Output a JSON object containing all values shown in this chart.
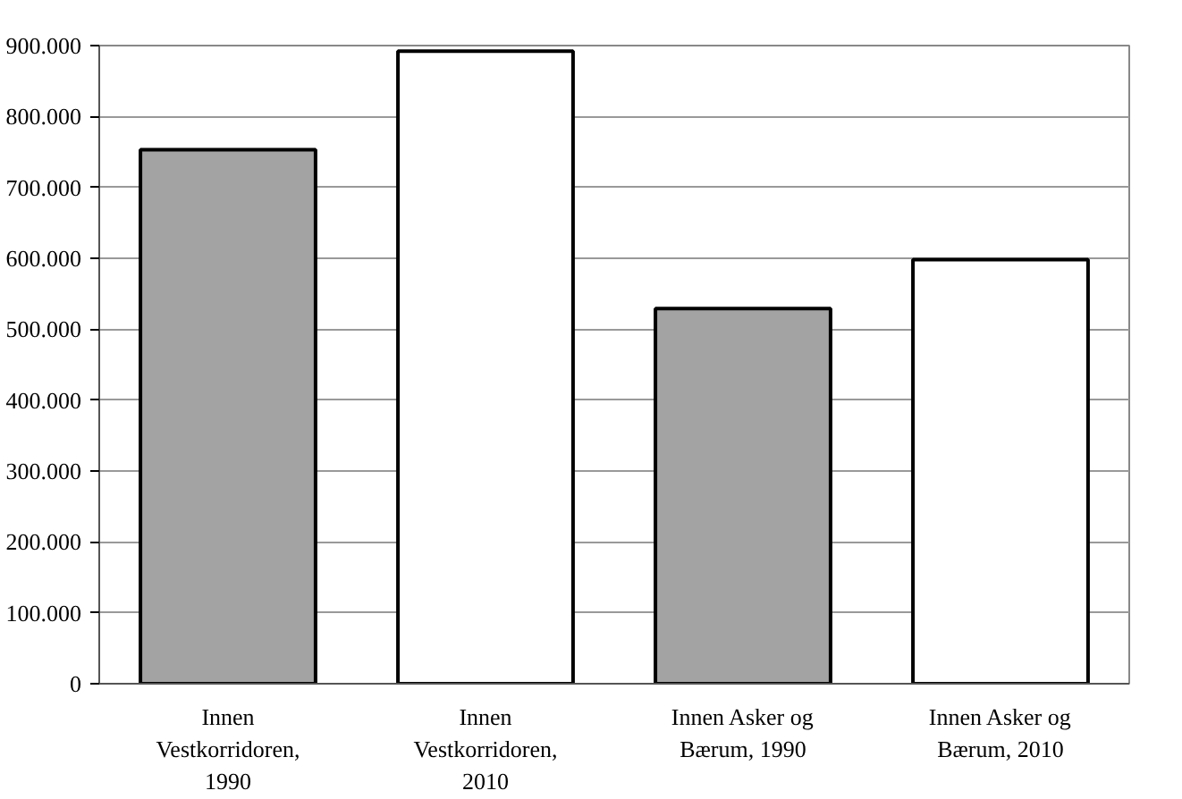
{
  "chart_data": {
    "type": "bar",
    "categories": [
      "Innen\nVestkorridoren,\n1990",
      "Innen\nVestkorridoren,\n2010",
      "Innen Asker og\nBærum, 1990",
      "Innen Asker og\nBærum, 2010"
    ],
    "values": [
      753000,
      892000,
      529000,
      598000
    ],
    "colors": [
      "#a3a3a3",
      "#ffffff",
      "#a3a3a3",
      "#ffffff"
    ],
    "ylim": [
      0,
      900000
    ],
    "yticks": [
      {
        "value": 0,
        "label": "0"
      },
      {
        "value": 100000,
        "label": "100.000"
      },
      {
        "value": 200000,
        "label": "200.000"
      },
      {
        "value": 300000,
        "label": "300.000"
      },
      {
        "value": 400000,
        "label": "400.000"
      },
      {
        "value": 500000,
        "label": "500.000"
      },
      {
        "value": 600000,
        "label": "600.000"
      },
      {
        "value": 700000,
        "label": "700.000"
      },
      {
        "value": 800000,
        "label": "800.000"
      },
      {
        "value": 900000,
        "label": "900.000"
      }
    ],
    "grid": "y"
  }
}
